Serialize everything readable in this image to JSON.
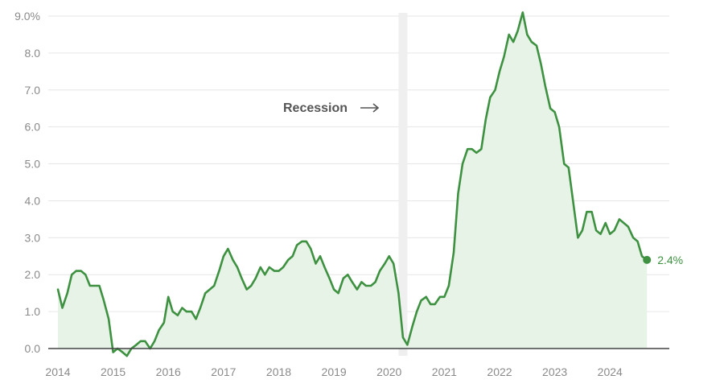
{
  "chart_data": {
    "type": "area",
    "title": "",
    "xlabel": "",
    "ylabel": "",
    "ylim": [
      0,
      9
    ],
    "xlim": [
      2014.0,
      2024.9
    ],
    "x_ticks": [
      "2014",
      "2015",
      "2016",
      "2017",
      "2018",
      "2019",
      "2020",
      "2021",
      "2022",
      "2023",
      "2024"
    ],
    "y_ticks": [
      "0.0",
      "1.0",
      "2.0",
      "3.0",
      "4.0",
      "5.0",
      "6.0",
      "7.0",
      "8.0",
      "9.0%"
    ],
    "grid": true,
    "colors": {
      "line": "#3d9140",
      "area": "#e6f3e6",
      "recession": "#efefef",
      "grid": "#e6e6e6"
    },
    "recession": {
      "label": "Recession",
      "start": 2020.17,
      "end": 2020.33
    },
    "end_label": "2.4%",
    "series": [
      {
        "x": [
          2014.0,
          2014.08,
          2014.17,
          2014.25,
          2014.33,
          2014.42,
          2014.5,
          2014.58,
          2014.67,
          2014.75,
          2014.83,
          2014.92,
          2015.0,
          2015.08,
          2015.17,
          2015.25,
          2015.33,
          2015.42,
          2015.5,
          2015.58,
          2015.67,
          2015.75,
          2015.83,
          2015.92,
          2016.0,
          2016.08,
          2016.17,
          2016.25,
          2016.33,
          2016.42,
          2016.5,
          2016.58,
          2016.67,
          2016.75,
          2016.83,
          2016.92,
          2017.0,
          2017.08,
          2017.17,
          2017.25,
          2017.33,
          2017.42,
          2017.5,
          2017.58,
          2017.67,
          2017.75,
          2017.83,
          2017.92,
          2018.0,
          2018.08,
          2018.17,
          2018.25,
          2018.33,
          2018.42,
          2018.5,
          2018.58,
          2018.67,
          2018.75,
          2018.83,
          2018.92,
          2019.0,
          2019.08,
          2019.17,
          2019.25,
          2019.33,
          2019.42,
          2019.5,
          2019.58,
          2019.67,
          2019.75,
          2019.83,
          2019.92,
          2020.0,
          2020.08,
          2020.17,
          2020.25,
          2020.33,
          2020.42,
          2020.5,
          2020.58,
          2020.67,
          2020.75,
          2020.83,
          2020.92,
          2021.0,
          2021.08,
          2021.17,
          2021.25,
          2021.33,
          2021.42,
          2021.5,
          2021.58,
          2021.67,
          2021.75,
          2021.83,
          2021.92,
          2022.0,
          2022.08,
          2022.17,
          2022.25,
          2022.33,
          2022.42,
          2022.5,
          2022.58,
          2022.67,
          2022.75,
          2022.83,
          2022.92,
          2023.0,
          2023.08,
          2023.17,
          2023.25,
          2023.33,
          2023.42,
          2023.5,
          2023.58,
          2023.67,
          2023.75,
          2023.83,
          2023.92,
          2024.0,
          2024.08,
          2024.17,
          2024.25,
          2024.33,
          2024.42,
          2024.5,
          2024.58,
          2024.67
        ],
        "values": [
          1.6,
          1.1,
          1.5,
          2.0,
          2.1,
          2.1,
          2.0,
          1.7,
          1.7,
          1.7,
          1.3,
          0.8,
          -0.1,
          0.0,
          -0.1,
          -0.2,
          0.0,
          0.1,
          0.2,
          0.2,
          0.0,
          0.2,
          0.5,
          0.7,
          1.4,
          1.0,
          0.9,
          1.1,
          1.0,
          1.0,
          0.8,
          1.1,
          1.5,
          1.6,
          1.7,
          2.1,
          2.5,
          2.7,
          2.4,
          2.2,
          1.9,
          1.6,
          1.7,
          1.9,
          2.2,
          2.0,
          2.2,
          2.1,
          2.1,
          2.2,
          2.4,
          2.5,
          2.8,
          2.9,
          2.9,
          2.7,
          2.3,
          2.5,
          2.2,
          1.9,
          1.6,
          1.5,
          1.9,
          2.0,
          1.8,
          1.6,
          1.8,
          1.7,
          1.7,
          1.8,
          2.1,
          2.3,
          2.5,
          2.3,
          1.5,
          0.3,
          0.1,
          0.6,
          1.0,
          1.3,
          1.4,
          1.2,
          1.2,
          1.4,
          1.4,
          1.7,
          2.6,
          4.2,
          5.0,
          5.4,
          5.4,
          5.3,
          5.4,
          6.2,
          6.8,
          7.0,
          7.5,
          7.9,
          8.5,
          8.3,
          8.6,
          9.1,
          8.5,
          8.3,
          8.2,
          7.7,
          7.1,
          6.5,
          6.4,
          6.0,
          5.0,
          4.9,
          4.0,
          3.0,
          3.2,
          3.7,
          3.7,
          3.2,
          3.1,
          3.4,
          3.1,
          3.2,
          3.5,
          3.4,
          3.3,
          3.0,
          2.9,
          2.5,
          2.4
        ]
      }
    ]
  }
}
